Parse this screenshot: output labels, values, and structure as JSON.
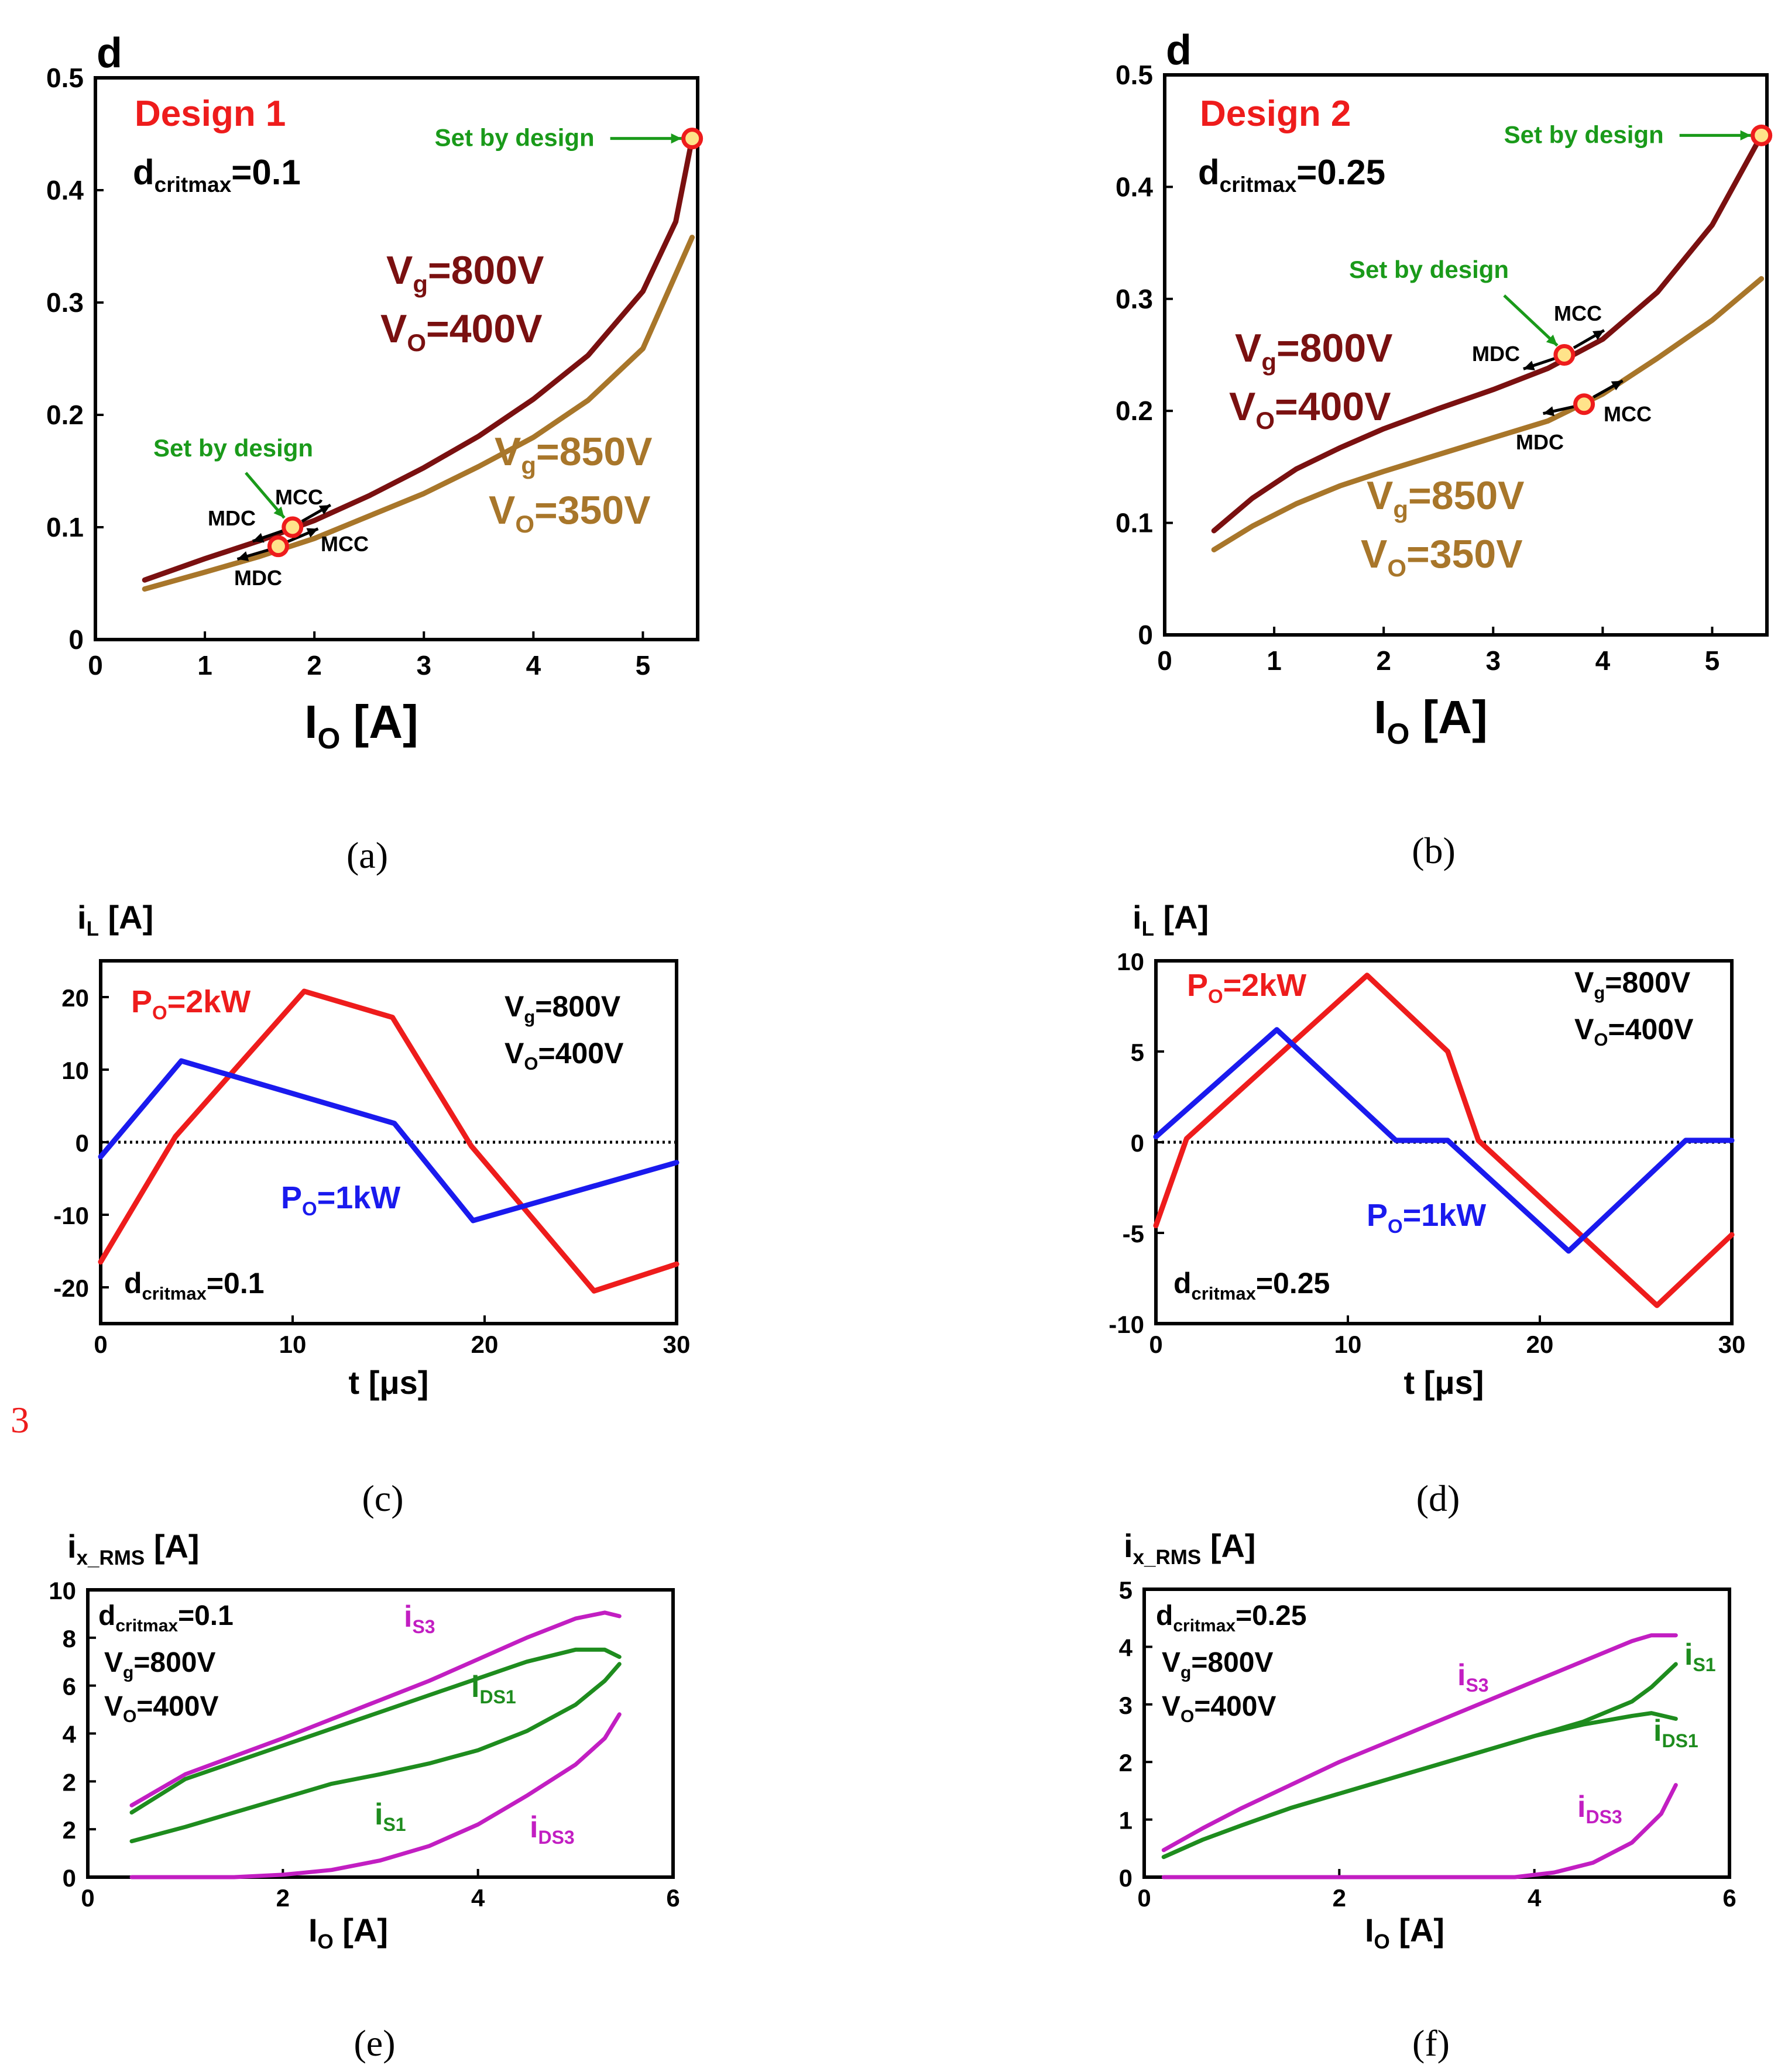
{
  "side_mark": "3",
  "colors": {
    "dark_red": "#7a1010",
    "gold": "#a8762a",
    "red": "#ee1c1c",
    "blue": "#1a1aee",
    "green": "#1e8c1e",
    "magenta": "#c21ec2",
    "annot_green": "#1a9a1a"
  },
  "chart_data": [
    {
      "id": "a",
      "type": "line",
      "caption": "(a)",
      "ylabel": "d",
      "xlabel_main": "I",
      "xlabel_sub": "O",
      "xlabel_tail": " [A]",
      "xlim": [
        0,
        5.5
      ],
      "ylim": [
        0,
        0.5
      ],
      "xticks": [
        "0",
        "1",
        "2",
        "3",
        "4",
        "5"
      ],
      "yticks": [
        "0",
        "0.1",
        "0.2",
        "0.3",
        "0.4",
        "0.5"
      ],
      "design_label": "Design 1",
      "dcrit_main": "d",
      "dcrit_sub": "critmax",
      "dcrit_val": "=0.1",
      "series": [
        {
          "label_vg": "V",
          "label_vg_sub": "g",
          "label_vg_val": "=800V",
          "label_vo": "V",
          "label_vo_sub": "O",
          "label_vo_val": "=400V",
          "x": [
            0.45,
            1,
            1.5,
            2,
            2.5,
            3,
            3.5,
            4,
            4.5,
            5,
            5.3,
            5.45
          ],
          "y": [
            0.053,
            0.072,
            0.088,
            0.106,
            0.128,
            0.153,
            0.181,
            0.214,
            0.253,
            0.31,
            0.372,
            0.446
          ]
        },
        {
          "label_vg": "V",
          "label_vg_sub": "g",
          "label_vg_val": "=850V",
          "label_vo": "V",
          "label_vo_sub": "O",
          "label_vo_val": "=350V",
          "x": [
            0.45,
            1,
            1.5,
            2,
            2.5,
            3,
            3.5,
            4,
            4.5,
            5,
            5.45
          ],
          "y": [
            0.045,
            0.06,
            0.074,
            0.09,
            0.11,
            0.13,
            0.154,
            0.18,
            0.213,
            0.259,
            0.358
          ]
        }
      ],
      "markers": [
        {
          "series": 0,
          "x": 1.8,
          "y": 0.1
        },
        {
          "series": 1,
          "x": 1.67,
          "y": 0.083
        },
        {
          "series": 0,
          "x": 5.45,
          "y": 0.446
        }
      ],
      "annotations": {
        "set_by_design_top": "Set by design",
        "set_by_design_low": "Set by design",
        "mcc": "MCC",
        "mdc": "MDC"
      }
    },
    {
      "id": "b",
      "type": "line",
      "caption": "(b)",
      "ylabel": "d",
      "xlabel_main": "I",
      "xlabel_sub": "O",
      "xlabel_tail": " [A]",
      "xlim": [
        0,
        5.5
      ],
      "ylim": [
        0,
        0.5
      ],
      "xticks": [
        "0",
        "1",
        "2",
        "3",
        "4",
        "5"
      ],
      "yticks": [
        "0",
        "0.1",
        "0.2",
        "0.3",
        "0.4",
        "0.5"
      ],
      "design_label": "Design 2",
      "dcrit_main": "d",
      "dcrit_sub": "critmax",
      "dcrit_val": "=0.25",
      "series": [
        {
          "label_vg": "V",
          "label_vg_sub": "g",
          "label_vg_val": "=800V",
          "label_vo": "V",
          "label_vo_sub": "O",
          "label_vo_val": "=400V",
          "x": [
            0.45,
            0.8,
            1.2,
            1.6,
            2,
            2.5,
            3,
            3.5,
            4,
            4.5,
            5,
            5.45
          ],
          "y": [
            0.093,
            0.122,
            0.148,
            0.167,
            0.184,
            0.202,
            0.219,
            0.238,
            0.264,
            0.306,
            0.366,
            0.446
          ]
        },
        {
          "label_vg": "V",
          "label_vg_sub": "g",
          "label_vg_val": "=850V",
          "label_vo": "V",
          "label_vo_sub": "O",
          "label_vo_val": "=350V",
          "x": [
            0.45,
            0.8,
            1.2,
            1.6,
            2,
            2.5,
            3,
            3.5,
            4,
            4.5,
            5,
            5.45
          ],
          "y": [
            0.076,
            0.097,
            0.117,
            0.133,
            0.146,
            0.161,
            0.176,
            0.191,
            0.215,
            0.247,
            0.281,
            0.318
          ]
        }
      ],
      "markers": [
        {
          "series": 0,
          "x": 3.65,
          "y": 0.25
        },
        {
          "series": 1,
          "x": 3.83,
          "y": 0.206
        },
        {
          "series": 0,
          "x": 5.45,
          "y": 0.446
        }
      ],
      "annotations": {
        "set_by_design_top": "Set by design",
        "set_by_design_low": "Set by design",
        "mcc": "MCC",
        "mdc": "MDC"
      }
    },
    {
      "id": "c",
      "type": "line",
      "caption": "(c)",
      "ylabel_main": "i",
      "ylabel_sub": "L",
      "ylabel_tail": " [A]",
      "xlabel": "t [μs]",
      "xlim": [
        0,
        30
      ],
      "ylim": [
        -25,
        25
      ],
      "xticks": [
        "0",
        "10",
        "20",
        "30"
      ],
      "yticks": [
        "-20",
        "-10",
        "0",
        "10",
        "20"
      ],
      "conditions": {
        "vg": "V",
        "vg_sub": "g",
        "vg_val": "=800V",
        "vo": "V",
        "vo_sub": "O",
        "vo_val": "=400V"
      },
      "dcrit_main": "d",
      "dcrit_sub": "critmax",
      "dcrit_val": "=0.1",
      "series": [
        {
          "name_main": "P",
          "name_sub": "O",
          "name_val": "=2kW",
          "x": [
            0,
            3.9,
            10.6,
            15.2,
            19.3,
            25.7,
            30
          ],
          "y": [
            -16.5,
            0.8,
            20.8,
            17.2,
            -0.5,
            -20.5,
            -16.8
          ]
        },
        {
          "name_main": "P",
          "name_sub": "O",
          "name_val": "=1kW",
          "x": [
            0,
            4.2,
            15.3,
            19.4,
            30
          ],
          "y": [
            -2,
            11.2,
            2.6,
            -10.8,
            -2.8
          ]
        }
      ]
    },
    {
      "id": "d",
      "type": "line",
      "caption": "(d)",
      "ylabel_main": "i",
      "ylabel_sub": "L",
      "ylabel_tail": " [A]",
      "xlabel": "t [μs]",
      "xlim": [
        0,
        30
      ],
      "ylim": [
        -10,
        10
      ],
      "xticks": [
        "0",
        "10",
        "20",
        "30"
      ],
      "yticks": [
        "-10",
        "-5",
        "0",
        "5",
        "10"
      ],
      "conditions": {
        "vg": "V",
        "vg_sub": "g",
        "vg_val": "=800V",
        "vo": "V",
        "vo_sub": "O",
        "vo_val": "=400V"
      },
      "dcrit_main": "d",
      "dcrit_sub": "critmax",
      "dcrit_val": "=0.25",
      "series": [
        {
          "name_main": "P",
          "name_sub": "O",
          "name_val": "=2kW",
          "x": [
            0,
            1.6,
            11,
            15.2,
            16.8,
            26.1,
            30
          ],
          "y": [
            -4.6,
            0.2,
            9.2,
            5,
            0.1,
            -9,
            -5.1
          ]
        },
        {
          "name_main": "P",
          "name_sub": "O",
          "name_val": "=1kW",
          "x": [
            0,
            6.3,
            12.5,
            15.2,
            21.5,
            27.6,
            30
          ],
          "y": [
            0.3,
            6.2,
            0.1,
            0.1,
            -6,
            0.1,
            0.1
          ]
        }
      ]
    },
    {
      "id": "e",
      "type": "line",
      "caption": "(e)",
      "ylabel_main": "i",
      "ylabel_sub": "x_RMS",
      "ylabel_tail": " [A]",
      "xlabel_main": "I",
      "xlabel_sub": "O",
      "xlabel_tail": " [A]",
      "xlim": [
        0,
        6
      ],
      "ylim": [
        0,
        10
      ],
      "xticks": [
        "0",
        "2",
        "4",
        "6"
      ],
      "yticks": [
        "0",
        "2",
        "2",
        "4",
        "6",
        "8",
        "10"
      ],
      "conditions": {
        "dcrit_main": "d",
        "dcrit_sub": "critmax",
        "dcrit_val": "=0.1",
        "vg": "V",
        "vg_sub": "g",
        "vg_val": "=800V",
        "vo": "V",
        "vo_sub": "O",
        "vo_val": "=400V"
      },
      "series": [
        {
          "name_main": "i",
          "name_sub": "S3",
          "color": "magenta",
          "x": [
            0.45,
            1,
            1.5,
            2,
            2.5,
            3,
            3.5,
            4,
            4.5,
            5,
            5.3,
            5.45
          ],
          "y": [
            1.5,
            2.3,
            3.05,
            3.8,
            4.6,
            5.4,
            6.2,
            7.1,
            8,
            8.8,
            9.05,
            8.9
          ]
        },
        {
          "name_main": "i",
          "name_sub": "DS1",
          "color": "green",
          "x": [
            0.45,
            1,
            1.5,
            2,
            2.5,
            3,
            3.5,
            4,
            4.5,
            5,
            5.3,
            5.45
          ],
          "y": [
            1.35,
            2.1,
            2.8,
            3.5,
            4.2,
            4.9,
            5.6,
            6.3,
            7,
            7.5,
            7.5,
            7.2
          ]
        },
        {
          "name_main": "i",
          "name_sub": "S1",
          "color": "green",
          "x": [
            0.45,
            1,
            1.5,
            2,
            2.5,
            3,
            3.5,
            4,
            4.5,
            5,
            5.3,
            5.45
          ],
          "y": [
            0.75,
            1.05,
            1.35,
            1.65,
            1.95,
            2.3,
            2.75,
            3.3,
            4.1,
            5.2,
            6.2,
            6.9
          ]
        },
        {
          "name_main": "i",
          "name_sub": "DS3",
          "color": "magenta",
          "x": [
            0.45,
            1.5,
            2,
            2.5,
            3,
            3.5,
            4,
            4.5,
            5,
            5.3,
            5.45
          ],
          "y": [
            0,
            0,
            0.05,
            0.15,
            0.35,
            0.65,
            1.1,
            1.7,
            2.7,
            3.8,
            4.8
          ]
        }
      ]
    },
    {
      "id": "f",
      "type": "line",
      "caption": "(f)",
      "ylabel_main": "i",
      "ylabel_sub": "x_RMS",
      "ylabel_tail": " [A]",
      "xlabel_main": "I",
      "xlabel_sub": "O",
      "xlabel_tail": " [A]",
      "xlim": [
        0,
        6
      ],
      "ylim": [
        0,
        5
      ],
      "xticks": [
        "0",
        "2",
        "4",
        "6"
      ],
      "yticks": [
        "0",
        "1",
        "2",
        "3",
        "4",
        "5"
      ],
      "conditions": {
        "dcrit_main": "d",
        "dcrit_sub": "critmax",
        "dcrit_val": "=0.25",
        "vg": "V",
        "vg_sub": "g",
        "vg_val": "=800V",
        "vo": "V",
        "vo_sub": "O",
        "vo_val": "=400V"
      },
      "series": [
        {
          "name_main": "i",
          "name_sub": "S3",
          "color": "magenta",
          "x": [
            0.2,
            0.6,
            1,
            1.5,
            2,
            2.5,
            3,
            3.5,
            4,
            4.5,
            5,
            5.2,
            5.45
          ],
          "y": [
            0.47,
            0.85,
            1.2,
            1.6,
            2,
            2.35,
            2.7,
            3.05,
            3.4,
            3.75,
            4.1,
            4.2,
            4.2
          ]
        },
        {
          "name_main": "i",
          "name_sub": "S1",
          "color": "green",
          "x": [
            0.2,
            0.6,
            1,
            1.5,
            2,
            2.5,
            3,
            3.5,
            4,
            4.5,
            5,
            5.2,
            5.45
          ],
          "y": [
            0.35,
            0.65,
            0.9,
            1.2,
            1.45,
            1.7,
            1.95,
            2.2,
            2.45,
            2.7,
            3.05,
            3.3,
            3.7
          ]
        },
        {
          "name_main": "i",
          "name_sub": "DS1",
          "color": "green",
          "x": [
            0.2,
            0.6,
            1,
            1.5,
            2,
            2.5,
            3,
            3.5,
            4,
            4.5,
            5,
            5.2,
            5.45
          ],
          "y": [
            0.35,
            0.65,
            0.9,
            1.2,
            1.45,
            1.7,
            1.95,
            2.2,
            2.45,
            2.65,
            2.8,
            2.85,
            2.75
          ]
        },
        {
          "name_main": "i",
          "name_sub": "DS3",
          "color": "magenta",
          "x": [
            0.2,
            3.8,
            4.2,
            4.6,
            5,
            5.3,
            5.45
          ],
          "y": [
            0,
            0,
            0.08,
            0.25,
            0.6,
            1.1,
            1.6
          ]
        }
      ]
    }
  ]
}
